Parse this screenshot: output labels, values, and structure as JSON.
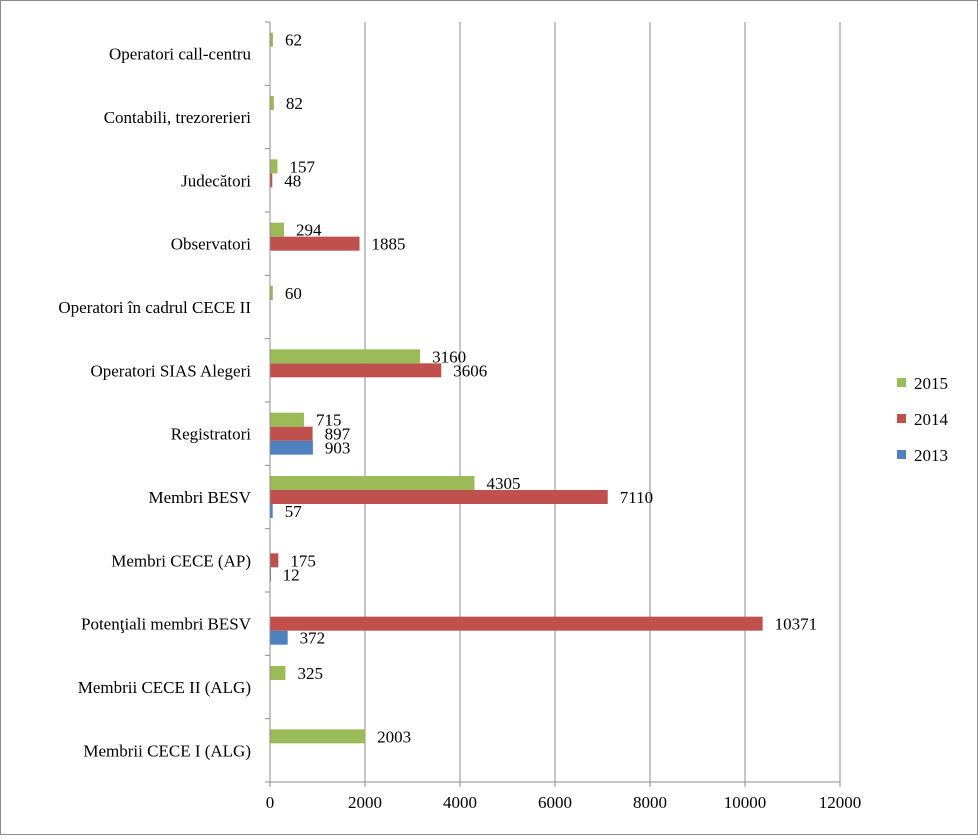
{
  "chart_data": {
    "type": "bar",
    "orientation": "horizontal",
    "categories": [
      "Membrii CECE I (ALG)",
      "Membrii CECE II (ALG)",
      "Potenţiali membri  BESV",
      "Membri CECE (AP)",
      "Membri BESV",
      "Registratori",
      "Operatori SIAS Alegeri",
      "Operatori în cadrul CECE II",
      "Observatori",
      "Judecători",
      "Contabili, trezorerieri",
      "Operatori call-centru"
    ],
    "series": [
      {
        "name": "2013",
        "color": "#4f81bd",
        "values": [
          null,
          null,
          372,
          12,
          57,
          903,
          null,
          null,
          null,
          null,
          null,
          null
        ]
      },
      {
        "name": "2014",
        "color": "#c0504d",
        "values": [
          null,
          null,
          10371,
          175,
          7110,
          897,
          3606,
          null,
          1885,
          48,
          null,
          null
        ]
      },
      {
        "name": "2015",
        "color": "#9bbb59",
        "values": [
          2003,
          325,
          null,
          null,
          4305,
          715,
          3160,
          60,
          294,
          157,
          82,
          62
        ]
      }
    ],
    "xlim": [
      0,
      12000
    ],
    "xticks": [
      "0",
      "2000",
      "4000",
      "6000",
      "8000",
      "10000",
      "12000"
    ],
    "grid": "vertical",
    "legend": "right",
    "title": "",
    "xlabel": "",
    "ylabel": ""
  }
}
